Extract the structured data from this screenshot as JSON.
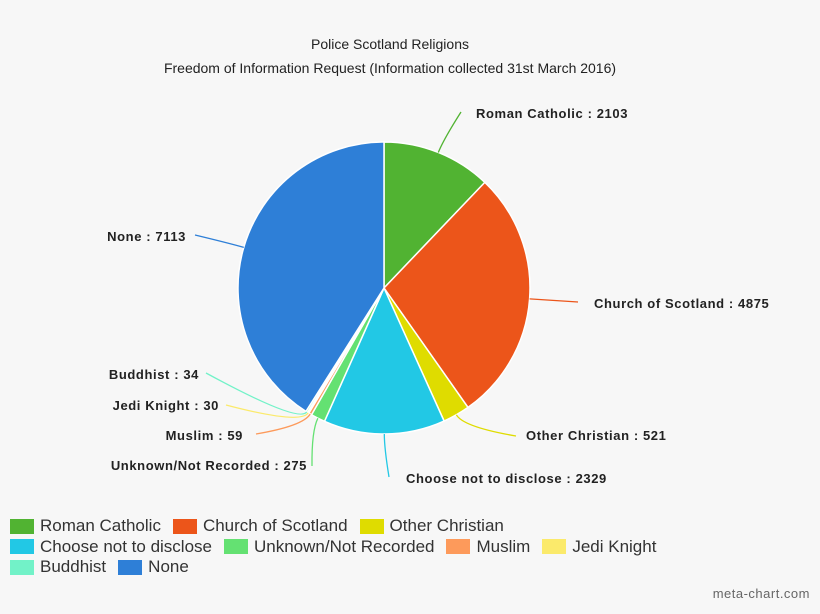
{
  "chart_data": {
    "type": "pie",
    "title": "Police Scotland Religions",
    "subtitle": "Freedom of Information Request (Information collected 31st March 2016)",
    "slices": [
      {
        "label": "Roman Catholic",
        "value": 2103,
        "color": "#51b332",
        "callout": "Roman Catholic : 2103"
      },
      {
        "label": "Church of Scotland",
        "value": 4875,
        "color": "#ec551a",
        "callout": "Church of Scotland : 4875"
      },
      {
        "label": "Other Christian",
        "value": 521,
        "color": "#dfdc00",
        "callout": "Other Christian : 521"
      },
      {
        "label": "Choose not to disclose",
        "value": 2329,
        "color": "#22c8e5",
        "callout": "Choose not to disclose : 2329"
      },
      {
        "label": "Unknown/Not Recorded",
        "value": 275,
        "color": "#64e172",
        "callout": "Unknown/Not Recorded : 275"
      },
      {
        "label": "Muslim",
        "value": 59,
        "color": "#fd9a5b",
        "callout": "Muslim : 59"
      },
      {
        "label": "Jedi Knight",
        "value": 30,
        "color": "#fbea6b",
        "callout": "Jedi Knight : 30"
      },
      {
        "label": "Buddhist",
        "value": 34,
        "color": "#72f2c8",
        "callout": "Buddhist : 34"
      },
      {
        "label": "None",
        "value": 7113,
        "color": "#2e7fd7",
        "callout": "None : 7113"
      }
    ],
    "legend_placement": "bottom"
  },
  "credit": "meta-chart.com"
}
